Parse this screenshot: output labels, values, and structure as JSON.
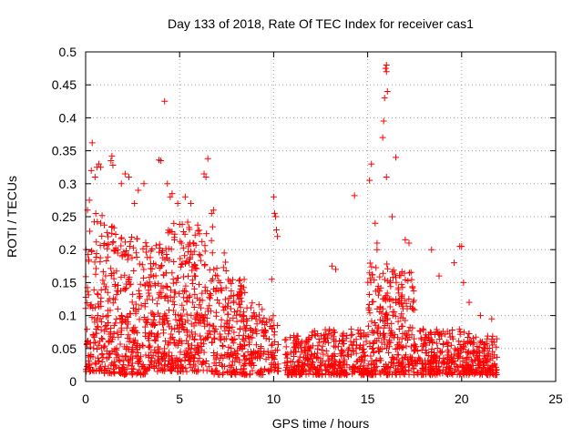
{
  "chart_data": {
    "type": "scatter",
    "title": "Day 133 of 2018, Rate Of TEC Index for receiver cas1",
    "xlabel": "GPS time / hours",
    "ylabel": "ROTI / TECUs",
    "xlim": [
      0,
      25
    ],
    "ylim": [
      0,
      0.5
    ],
    "xticks": [
      0,
      5,
      10,
      15,
      20,
      25
    ],
    "yticks": [
      0,
      0.05,
      0.1,
      0.15,
      0.2,
      0.25,
      0.3,
      0.35,
      0.4,
      0.45,
      0.5
    ],
    "grid": true,
    "marker": "plus",
    "color": "#ff0000",
    "bands": [
      {
        "x": [
          0.0,
          0.9
        ],
        "lo": 0.015,
        "hi": 0.26,
        "count": 110
      },
      {
        "x": [
          0.9,
          2.0
        ],
        "lo": 0.012,
        "hi": 0.24,
        "count": 150
      },
      {
        "x": [
          2.0,
          3.2
        ],
        "lo": 0.01,
        "hi": 0.22,
        "count": 150
      },
      {
        "x": [
          3.2,
          4.3
        ],
        "lo": 0.015,
        "hi": 0.21,
        "count": 150
      },
      {
        "x": [
          4.3,
          5.5
        ],
        "lo": 0.015,
        "hi": 0.25,
        "count": 170
      },
      {
        "x": [
          5.5,
          6.8
        ],
        "lo": 0.015,
        "hi": 0.24,
        "count": 160
      },
      {
        "x": [
          6.8,
          7.5
        ],
        "lo": 0.01,
        "hi": 0.2,
        "count": 70
      },
      {
        "x": [
          7.5,
          8.5
        ],
        "lo": 0.01,
        "hi": 0.16,
        "count": 140
      },
      {
        "x": [
          8.5,
          9.5
        ],
        "lo": 0.01,
        "hi": 0.12,
        "count": 90
      },
      {
        "x": [
          9.5,
          10.3
        ],
        "lo": 0.015,
        "hi": 0.1,
        "count": 55
      },
      {
        "x": [
          10.6,
          12.0
        ],
        "lo": 0.01,
        "hi": 0.07,
        "count": 130
      },
      {
        "x": [
          12.0,
          13.5
        ],
        "lo": 0.01,
        "hi": 0.08,
        "count": 130
      },
      {
        "x": [
          13.5,
          15.0
        ],
        "lo": 0.01,
        "hi": 0.08,
        "count": 130
      },
      {
        "x": [
          15.0,
          16.3
        ],
        "lo": 0.01,
        "hi": 0.18,
        "count": 170
      },
      {
        "x": [
          16.3,
          17.5
        ],
        "lo": 0.01,
        "hi": 0.17,
        "count": 150
      },
      {
        "x": [
          17.5,
          19.0
        ],
        "lo": 0.01,
        "hi": 0.08,
        "count": 140
      },
      {
        "x": [
          19.0,
          20.5
        ],
        "lo": 0.01,
        "hi": 0.08,
        "count": 130
      },
      {
        "x": [
          20.5,
          21.9
        ],
        "lo": 0.01,
        "hi": 0.07,
        "count": 130
      }
    ],
    "outliers": [
      [
        0.1,
        0.26
      ],
      [
        0.2,
        0.275
      ],
      [
        0.3,
        0.32
      ],
      [
        0.35,
        0.362
      ],
      [
        0.5,
        0.31
      ],
      [
        0.6,
        0.325
      ],
      [
        0.7,
        0.33
      ],
      [
        0.8,
        0.325
      ],
      [
        1.35,
        0.335
      ],
      [
        1.4,
        0.342
      ],
      [
        1.45,
        0.328
      ],
      [
        1.9,
        0.3
      ],
      [
        2.1,
        0.315
      ],
      [
        2.3,
        0.31
      ],
      [
        2.6,
        0.27
      ],
      [
        2.8,
        0.29
      ],
      [
        3.1,
        0.3
      ],
      [
        3.9,
        0.336
      ],
      [
        4.0,
        0.335
      ],
      [
        4.2,
        0.425
      ],
      [
        4.35,
        0.3
      ],
      [
        4.5,
        0.28
      ],
      [
        4.6,
        0.285
      ],
      [
        4.9,
        0.27
      ],
      [
        5.3,
        0.28
      ],
      [
        5.6,
        0.27
      ],
      [
        6.3,
        0.315
      ],
      [
        6.4,
        0.31
      ],
      [
        6.5,
        0.338
      ],
      [
        6.7,
        0.255
      ],
      [
        6.8,
        0.26
      ],
      [
        9.9,
        0.155
      ],
      [
        10.0,
        0.28
      ],
      [
        10.05,
        0.255
      ],
      [
        10.1,
        0.25
      ],
      [
        10.15,
        0.23
      ],
      [
        10.2,
        0.22
      ],
      [
        13.1,
        0.175
      ],
      [
        13.3,
        0.17
      ],
      [
        14.3,
        0.282
      ],
      [
        15.1,
        0.305
      ],
      [
        15.2,
        0.33
      ],
      [
        15.4,
        0.24
      ],
      [
        15.5,
        0.21
      ],
      [
        15.5,
        0.2
      ],
      [
        15.8,
        0.37
      ],
      [
        15.85,
        0.395
      ],
      [
        15.9,
        0.43
      ],
      [
        15.95,
        0.475
      ],
      [
        16.0,
        0.47
      ],
      [
        16.0,
        0.48
      ],
      [
        16.05,
        0.44
      ],
      [
        16.0,
        0.31
      ],
      [
        16.3,
        0.25
      ],
      [
        16.5,
        0.34
      ],
      [
        17.0,
        0.215
      ],
      [
        17.2,
        0.21
      ],
      [
        18.4,
        0.2
      ],
      [
        18.8,
        0.16
      ],
      [
        19.6,
        0.18
      ],
      [
        19.9,
        0.205
      ],
      [
        20.0,
        0.205
      ],
      [
        20.1,
        0.15
      ],
      [
        20.4,
        0.12
      ],
      [
        21.0,
        0.1
      ],
      [
        21.6,
        0.095
      ]
    ]
  }
}
